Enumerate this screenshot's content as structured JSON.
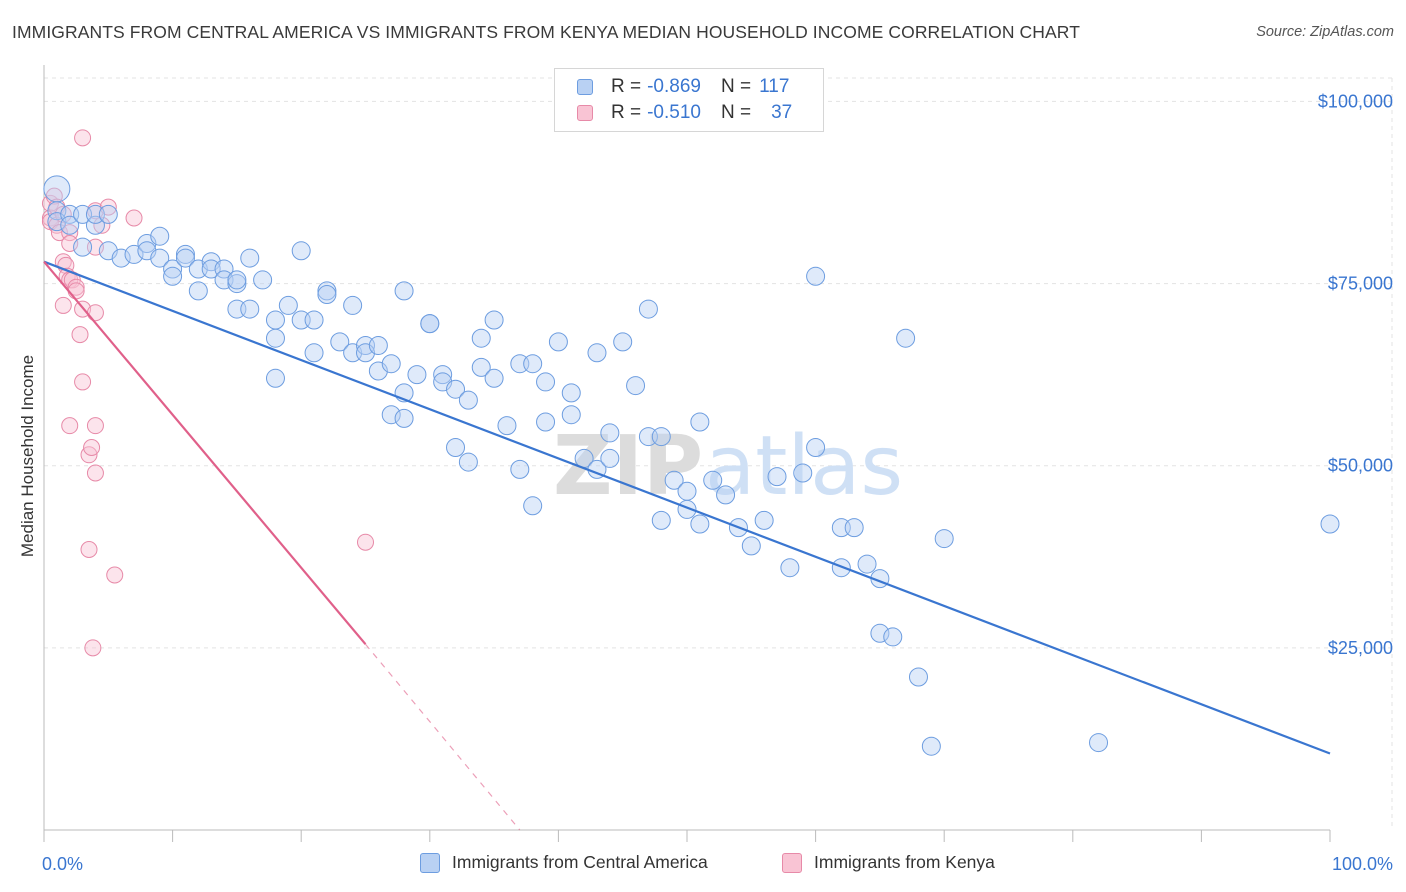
{
  "header": {
    "title": "IMMIGRANTS FROM CENTRAL AMERICA VS IMMIGRANTS FROM KENYA MEDIAN HOUSEHOLD INCOME CORRELATION CHART",
    "source": "Source: ZipAtlas.com"
  },
  "watermark": {
    "zip": "ZIP",
    "atlas": "atlas"
  },
  "legend": {
    "rows": [
      {
        "r_label": "R = ",
        "r_value": "-0.869",
        "n_label": "N = ",
        "n_value": "117"
      },
      {
        "r_label": "R = ",
        "r_value": "-0.510",
        "n_label": "N = ",
        "n_value": "37"
      }
    ]
  },
  "chart_data": {
    "type": "scatter",
    "xlabel": "",
    "ylabel": "Median Household Income",
    "xlim": [
      0,
      100
    ],
    "ylim": [
      0,
      105000
    ],
    "x_tick_labels": [
      "0.0%",
      "100.0%"
    ],
    "y_ticks": [
      25000,
      50000,
      75000,
      100000
    ],
    "y_tick_labels": [
      "$25,000",
      "$50,000",
      "$75,000",
      "$100,000"
    ],
    "grid": true,
    "legend_position": "top-center",
    "colors": {
      "central_america": "#6d9de0",
      "kenya": "#e78aa8",
      "trend_blue": "#3a76d0",
      "trend_pink": "#e0608a"
    },
    "series": [
      {
        "name": "Immigrants from Central America",
        "trend": {
          "x": [
            0,
            100
          ],
          "y": [
            78000,
            10500
          ]
        },
        "points": [
          [
            1,
            88000
          ],
          [
            1,
            85000
          ],
          [
            1,
            83500
          ],
          [
            2,
            84500
          ],
          [
            2,
            83000
          ],
          [
            3,
            84500
          ],
          [
            3,
            80000
          ],
          [
            4,
            83000
          ],
          [
            4,
            84500
          ],
          [
            5,
            84500
          ],
          [
            5,
            79500
          ],
          [
            6,
            78500
          ],
          [
            7,
            79000
          ],
          [
            8,
            80500
          ],
          [
            8,
            79500
          ],
          [
            9,
            78500
          ],
          [
            9,
            81500
          ],
          [
            10,
            77000
          ],
          [
            10,
            76000
          ],
          [
            11,
            79000
          ],
          [
            11,
            78500
          ],
          [
            12,
            77000
          ],
          [
            12,
            74000
          ],
          [
            13,
            78000
          ],
          [
            13,
            77000
          ],
          [
            14,
            77000
          ],
          [
            14,
            75500
          ],
          [
            15,
            75000
          ],
          [
            15,
            75500
          ],
          [
            15,
            71500
          ],
          [
            16,
            71500
          ],
          [
            16,
            78500
          ],
          [
            17,
            75500
          ],
          [
            18,
            70000
          ],
          [
            18,
            67500
          ],
          [
            18,
            62000
          ],
          [
            19,
            72000
          ],
          [
            20,
            70000
          ],
          [
            20,
            79500
          ],
          [
            21,
            70000
          ],
          [
            21,
            65500
          ],
          [
            22,
            74000
          ],
          [
            22,
            73500
          ],
          [
            23,
            67000
          ],
          [
            24,
            72000
          ],
          [
            24,
            65500
          ],
          [
            25,
            66500
          ],
          [
            25,
            65500
          ],
          [
            26,
            63000
          ],
          [
            26,
            66500
          ],
          [
            27,
            64000
          ],
          [
            27,
            57000
          ],
          [
            28,
            60000
          ],
          [
            28,
            56500
          ],
          [
            28,
            74000
          ],
          [
            29,
            62500
          ],
          [
            30,
            69500
          ],
          [
            30,
            69500
          ],
          [
            31,
            62500
          ],
          [
            31,
            61500
          ],
          [
            32,
            60500
          ],
          [
            32,
            52500
          ],
          [
            33,
            59000
          ],
          [
            33,
            50500
          ],
          [
            34,
            67500
          ],
          [
            34,
            63500
          ],
          [
            35,
            62000
          ],
          [
            35,
            70000
          ],
          [
            36,
            55500
          ],
          [
            37,
            64000
          ],
          [
            37,
            49500
          ],
          [
            38,
            44500
          ],
          [
            38,
            64000
          ],
          [
            39,
            61500
          ],
          [
            39,
            56000
          ],
          [
            40,
            67000
          ],
          [
            41,
            60000
          ],
          [
            41,
            57000
          ],
          [
            42,
            51000
          ],
          [
            43,
            49500
          ],
          [
            43,
            65500
          ],
          [
            44,
            54500
          ],
          [
            44,
            51000
          ],
          [
            45,
            67000
          ],
          [
            46,
            61000
          ],
          [
            47,
            71500
          ],
          [
            47,
            54000
          ],
          [
            48,
            42500
          ],
          [
            48,
            54000
          ],
          [
            49,
            48000
          ],
          [
            50,
            46500
          ],
          [
            50,
            44000
          ],
          [
            51,
            56000
          ],
          [
            51,
            42000
          ],
          [
            52,
            48000
          ],
          [
            53,
            46000
          ],
          [
            54,
            41500
          ],
          [
            55,
            39000
          ],
          [
            56,
            42500
          ],
          [
            57,
            48500
          ],
          [
            58,
            36000
          ],
          [
            59,
            49000
          ],
          [
            60,
            76000
          ],
          [
            60,
            52500
          ],
          [
            62,
            36000
          ],
          [
            62,
            41500
          ],
          [
            63,
            41500
          ],
          [
            64,
            36500
          ],
          [
            65,
            34500
          ],
          [
            65,
            27000
          ],
          [
            66,
            26500
          ],
          [
            67,
            67500
          ],
          [
            68,
            21000
          ],
          [
            69,
            11500
          ],
          [
            70,
            40000
          ],
          [
            82,
            12000
          ],
          [
            100,
            42000
          ]
        ]
      },
      {
        "name": "Immigrants from Kenya",
        "trend": {
          "x": [
            0,
            25
          ],
          "y": [
            78000,
            25500
          ]
        },
        "trend_extension": {
          "x": [
            25,
            37
          ],
          "y": [
            25500,
            0
          ]
        },
        "points": [
          [
            0.5,
            86000
          ],
          [
            0.5,
            84000
          ],
          [
            0.5,
            83500
          ],
          [
            0.8,
            87000
          ],
          [
            1,
            85500
          ],
          [
            1,
            83000
          ],
          [
            1.2,
            82000
          ],
          [
            1.5,
            84500
          ],
          [
            1.5,
            78000
          ],
          [
            1.5,
            72000
          ],
          [
            1.7,
            77500
          ],
          [
            1.8,
            76000
          ],
          [
            2,
            82000
          ],
          [
            2,
            80500
          ],
          [
            2,
            75500
          ],
          [
            2,
            55500
          ],
          [
            2.2,
            75500
          ],
          [
            2.5,
            74500
          ],
          [
            2.5,
            74000
          ],
          [
            2.8,
            68000
          ],
          [
            3,
            95000
          ],
          [
            3,
            71500
          ],
          [
            3,
            61500
          ],
          [
            3.5,
            51500
          ],
          [
            3.5,
            38500
          ],
          [
            3.7,
            52500
          ],
          [
            3.8,
            25000
          ],
          [
            4,
            85000
          ],
          [
            4,
            80000
          ],
          [
            4,
            71000
          ],
          [
            4,
            55500
          ],
          [
            4,
            49000
          ],
          [
            4.5,
            83000
          ],
          [
            5,
            85500
          ],
          [
            5.5,
            35000
          ],
          [
            7,
            84000
          ],
          [
            25,
            39500
          ]
        ]
      }
    ]
  }
}
